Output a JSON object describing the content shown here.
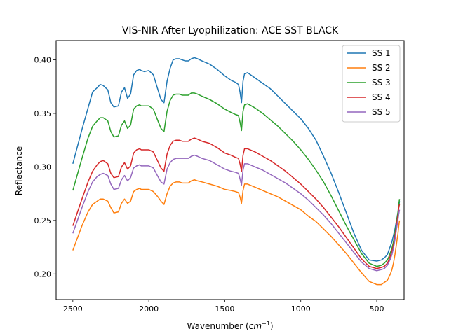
{
  "chart_data": {
    "type": "line",
    "title": "VIS-NIR After Lyophilization: ACE SST BLACK",
    "xlabel_main": "Wavenumber (",
    "xlabel_unit_base": "cm",
    "xlabel_unit_exp": "−1",
    "xlabel_close": ")",
    "ylabel": "Reflectance",
    "xlim": [
      2610,
      320
    ],
    "ylim": [
      0.176,
      0.418
    ],
    "x_ticks": [
      2500,
      2000,
      1500,
      1000,
      500
    ],
    "x_tick_labels": [
      "2500",
      "2000",
      "1500",
      "1000",
      "500"
    ],
    "y_ticks": [
      0.2,
      0.25,
      0.3,
      0.35,
      0.4
    ],
    "y_tick_labels": [
      "0.20",
      "0.25",
      "0.30",
      "0.35",
      "0.40"
    ],
    "grid": false,
    "legend_position": "top-right",
    "x": [
      2500,
      2440,
      2400,
      2370,
      2340,
      2320,
      2300,
      2270,
      2250,
      2230,
      2200,
      2180,
      2160,
      2140,
      2120,
      2100,
      2080,
      2060,
      2050,
      2030,
      2000,
      1970,
      1940,
      1920,
      1900,
      1880,
      1860,
      1840,
      1820,
      1800,
      1780,
      1760,
      1740,
      1720,
      1700,
      1680,
      1650,
      1600,
      1550,
      1500,
      1460,
      1430,
      1410,
      1400,
      1390,
      1380,
      1370,
      1350,
      1300,
      1250,
      1200,
      1150,
      1100,
      1050,
      1000,
      950,
      900,
      850,
      800,
      750,
      700,
      650,
      600,
      550,
      500,
      470,
      450,
      430,
      420,
      410,
      400,
      390,
      380,
      370,
      360,
      355,
      350
    ],
    "series": [
      {
        "name": "SS 1",
        "color": "#1f77b4",
        "values": [
          0.303,
          0.335,
          0.355,
          0.37,
          0.374,
          0.377,
          0.376,
          0.372,
          0.36,
          0.356,
          0.357,
          0.37,
          0.374,
          0.364,
          0.368,
          0.386,
          0.39,
          0.391,
          0.39,
          0.389,
          0.39,
          0.386,
          0.372,
          0.363,
          0.36,
          0.38,
          0.392,
          0.4,
          0.401,
          0.401,
          0.4,
          0.399,
          0.399,
          0.401,
          0.402,
          0.401,
          0.399,
          0.396,
          0.391,
          0.385,
          0.381,
          0.379,
          0.377,
          0.37,
          0.36,
          0.38,
          0.387,
          0.388,
          0.383,
          0.378,
          0.373,
          0.366,
          0.359,
          0.352,
          0.345,
          0.336,
          0.325,
          0.31,
          0.294,
          0.276,
          0.257,
          0.238,
          0.222,
          0.213,
          0.212,
          0.213,
          0.215,
          0.218,
          0.222,
          0.226,
          0.23,
          0.236,
          0.242,
          0.25,
          0.258,
          0.262,
          0.268
        ]
      },
      {
        "name": "SS 2",
        "color": "#ff7f0e",
        "values": [
          0.222,
          0.245,
          0.258,
          0.265,
          0.268,
          0.27,
          0.27,
          0.268,
          0.262,
          0.257,
          0.258,
          0.266,
          0.27,
          0.266,
          0.268,
          0.277,
          0.279,
          0.28,
          0.279,
          0.279,
          0.279,
          0.277,
          0.272,
          0.268,
          0.265,
          0.275,
          0.282,
          0.285,
          0.286,
          0.286,
          0.285,
          0.285,
          0.285,
          0.287,
          0.288,
          0.287,
          0.286,
          0.284,
          0.282,
          0.279,
          0.278,
          0.277,
          0.276,
          0.272,
          0.266,
          0.278,
          0.284,
          0.284,
          0.281,
          0.278,
          0.275,
          0.272,
          0.268,
          0.264,
          0.26,
          0.254,
          0.249,
          0.242,
          0.235,
          0.227,
          0.219,
          0.21,
          0.201,
          0.193,
          0.19,
          0.19,
          0.192,
          0.194,
          0.197,
          0.2,
          0.204,
          0.21,
          0.218,
          0.228,
          0.238,
          0.245,
          0.25
        ]
      },
      {
        "name": "SS 3",
        "color": "#2ca02c",
        "values": [
          0.278,
          0.308,
          0.327,
          0.338,
          0.343,
          0.346,
          0.346,
          0.343,
          0.333,
          0.328,
          0.329,
          0.339,
          0.343,
          0.336,
          0.339,
          0.354,
          0.357,
          0.358,
          0.357,
          0.357,
          0.357,
          0.354,
          0.343,
          0.336,
          0.333,
          0.352,
          0.362,
          0.367,
          0.368,
          0.368,
          0.367,
          0.367,
          0.367,
          0.369,
          0.369,
          0.368,
          0.366,
          0.363,
          0.359,
          0.354,
          0.351,
          0.349,
          0.348,
          0.342,
          0.334,
          0.352,
          0.358,
          0.359,
          0.355,
          0.35,
          0.344,
          0.338,
          0.331,
          0.324,
          0.316,
          0.307,
          0.297,
          0.286,
          0.273,
          0.259,
          0.245,
          0.232,
          0.219,
          0.21,
          0.207,
          0.208,
          0.21,
          0.213,
          0.216,
          0.22,
          0.224,
          0.23,
          0.238,
          0.248,
          0.258,
          0.265,
          0.27
        ]
      },
      {
        "name": "SS 4",
        "color": "#d62728",
        "values": [
          0.245,
          0.27,
          0.286,
          0.296,
          0.302,
          0.305,
          0.306,
          0.303,
          0.294,
          0.29,
          0.291,
          0.3,
          0.304,
          0.298,
          0.301,
          0.313,
          0.316,
          0.317,
          0.316,
          0.316,
          0.316,
          0.314,
          0.305,
          0.299,
          0.296,
          0.312,
          0.32,
          0.324,
          0.325,
          0.325,
          0.324,
          0.324,
          0.324,
          0.326,
          0.327,
          0.326,
          0.324,
          0.322,
          0.318,
          0.313,
          0.311,
          0.309,
          0.308,
          0.303,
          0.296,
          0.311,
          0.317,
          0.317,
          0.314,
          0.31,
          0.306,
          0.301,
          0.296,
          0.29,
          0.284,
          0.277,
          0.27,
          0.262,
          0.253,
          0.244,
          0.234,
          0.224,
          0.214,
          0.207,
          0.205,
          0.206,
          0.207,
          0.21,
          0.213,
          0.217,
          0.221,
          0.227,
          0.235,
          0.245,
          0.255,
          0.262,
          0.265
        ]
      },
      {
        "name": "SS 5",
        "color": "#9467bd",
        "values": [
          0.238,
          0.262,
          0.277,
          0.286,
          0.291,
          0.293,
          0.294,
          0.292,
          0.284,
          0.279,
          0.28,
          0.288,
          0.292,
          0.287,
          0.29,
          0.299,
          0.301,
          0.302,
          0.301,
          0.301,
          0.301,
          0.299,
          0.291,
          0.286,
          0.284,
          0.298,
          0.304,
          0.307,
          0.308,
          0.308,
          0.308,
          0.308,
          0.308,
          0.31,
          0.311,
          0.31,
          0.308,
          0.306,
          0.302,
          0.298,
          0.296,
          0.295,
          0.294,
          0.289,
          0.283,
          0.297,
          0.303,
          0.303,
          0.3,
          0.297,
          0.293,
          0.289,
          0.285,
          0.28,
          0.275,
          0.269,
          0.262,
          0.255,
          0.247,
          0.238,
          0.229,
          0.22,
          0.211,
          0.205,
          0.203,
          0.204,
          0.205,
          0.208,
          0.211,
          0.214,
          0.218,
          0.224,
          0.232,
          0.242,
          0.251,
          0.256,
          0.26
        ]
      }
    ]
  }
}
